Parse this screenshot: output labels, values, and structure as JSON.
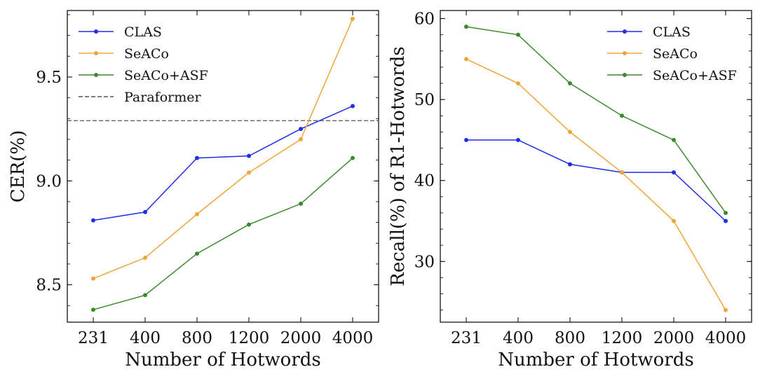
{
  "chart_data": [
    {
      "type": "line",
      "categories": [
        "231",
        "400",
        "800",
        "1200",
        "2000",
        "4000"
      ],
      "xlabel": "Number of Hotwords",
      "ylabel": "CER(%)",
      "ylim": [
        8.32,
        9.82
      ],
      "yticks": [
        "8.5",
        "9.0",
        "9.5"
      ],
      "ytick_values": [
        8.5,
        9.0,
        9.5
      ],
      "legend_position": "top-left",
      "series": [
        {
          "name": "CLAS",
          "color": "#1f2fe6",
          "values": [
            8.81,
            8.85,
            9.11,
            9.12,
            9.25,
            9.36
          ]
        },
        {
          "name": "SeACo",
          "color": "#f0a53a",
          "values": [
            8.53,
            8.63,
            8.84,
            9.04,
            9.2,
            9.78
          ]
        },
        {
          "name": "SeACo+ASF",
          "color": "#3c8a2e",
          "values": [
            8.38,
            8.45,
            8.65,
            8.79,
            8.89,
            9.11
          ]
        }
      ],
      "reference_line": {
        "name": "Paraformer",
        "value": 9.29,
        "color": "#555555",
        "style": "dashed"
      }
    },
    {
      "type": "line",
      "categories": [
        "231",
        "400",
        "800",
        "1200",
        "2000",
        "4000"
      ],
      "xlabel": "Number of Hotwords",
      "ylabel": "Recall(%)  of R1-Hotwords",
      "ylim": [
        22.5,
        61
      ],
      "yticks": [
        "30",
        "40",
        "50",
        "60"
      ],
      "ytick_values": [
        30,
        40,
        50,
        60
      ],
      "legend_position": "top-right",
      "series": [
        {
          "name": "CLAS",
          "color": "#1f2fe6",
          "values": [
            45,
            45,
            42,
            41,
            41,
            35
          ]
        },
        {
          "name": "SeACo",
          "color": "#f0a53a",
          "values": [
            55,
            52,
            46,
            41,
            35,
            24
          ]
        },
        {
          "name": "SeACo+ASF",
          "color": "#3c8a2e",
          "values": [
            59,
            58,
            52,
            48,
            45,
            36
          ]
        }
      ]
    }
  ]
}
